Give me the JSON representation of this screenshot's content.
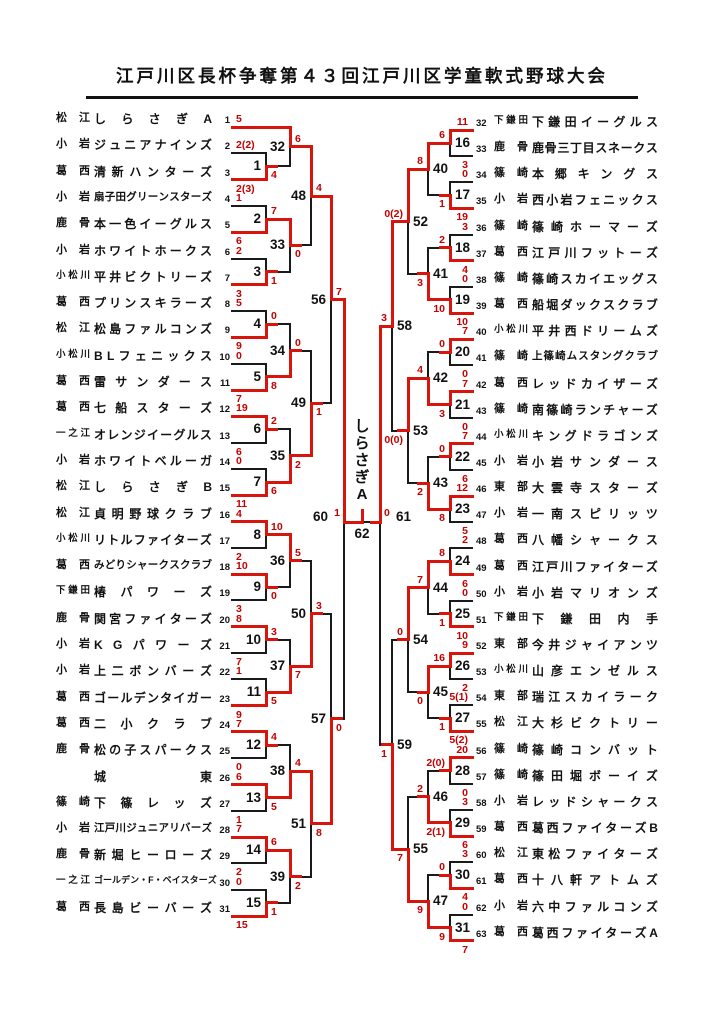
{
  "title": "江戸川区長杯争奪第４３回江戸川区学童軟式野球大会",
  "champion": "しらさぎA",
  "colors": {
    "winner_line": "#d8150d",
    "loser_line": "#1a1a1a",
    "score_text": "#c40000"
  },
  "teams": [
    {
      "no": 1,
      "district": "松江",
      "name": "しらさぎA"
    },
    {
      "no": 2,
      "district": "小岩",
      "name": "ジュニアナインズ"
    },
    {
      "no": 3,
      "district": "葛西",
      "name": "清新ハンターズ"
    },
    {
      "no": 4,
      "district": "小岩",
      "name": "扇子田グリーンスターズ"
    },
    {
      "no": 5,
      "district": "鹿骨",
      "name": "本一色イーグルス"
    },
    {
      "no": 6,
      "district": "小岩",
      "name": "ホワイトホークス"
    },
    {
      "no": 7,
      "district": "小松川",
      "name": "平井ビクトリーズ"
    },
    {
      "no": 8,
      "district": "葛西",
      "name": "プリンスキラーズ"
    },
    {
      "no": 9,
      "district": "松江",
      "name": "松島ファルコンズ"
    },
    {
      "no": 10,
      "district": "小松川",
      "name": "BLフェニックス"
    },
    {
      "no": 11,
      "district": "葛西",
      "name": "雷サンダース"
    },
    {
      "no": 12,
      "district": "葛西",
      "name": "七船スターズ"
    },
    {
      "no": 13,
      "district": "一之江",
      "name": "オレンジイーグルス"
    },
    {
      "no": 14,
      "district": "小岩",
      "name": "ホワイトベルーガ"
    },
    {
      "no": 15,
      "district": "松江",
      "name": "しらさぎB"
    },
    {
      "no": 16,
      "district": "松江",
      "name": "貞明野球クラブ"
    },
    {
      "no": 17,
      "district": "小松川",
      "name": "リトルファイターズ"
    },
    {
      "no": 18,
      "district": "葛西",
      "name": "みどりシャークスクラブ"
    },
    {
      "no": 19,
      "district": "下鎌田",
      "name": "椿パワーズ"
    },
    {
      "no": 20,
      "district": "鹿骨",
      "name": "関宮ファイターズ"
    },
    {
      "no": 21,
      "district": "小岩",
      "name": "KGパワーズ"
    },
    {
      "no": 22,
      "district": "小岩",
      "name": "上二ボンバーズ"
    },
    {
      "no": 23,
      "district": "葛西",
      "name": "ゴールデンタイガー"
    },
    {
      "no": 24,
      "district": "葛西",
      "name": "二小クラブ"
    },
    {
      "no": 25,
      "district": "鹿骨",
      "name": "松の子スパークス"
    },
    {
      "no": 26,
      "district": "",
      "name": "城東"
    },
    {
      "no": 27,
      "district": "篠崎",
      "name": "下篠レッズ"
    },
    {
      "no": 28,
      "district": "小岩",
      "name": "江戸川ジュニアリバーズ"
    },
    {
      "no": 29,
      "district": "鹿骨",
      "name": "新堀ヒーローズ"
    },
    {
      "no": 30,
      "district": "一之江",
      "name": "ゴールデン・F・ベイスターズ"
    },
    {
      "no": 31,
      "district": "葛西",
      "name": "長島ビーバーズ"
    },
    {
      "no": 32,
      "district": "下鎌田",
      "name": "下鎌田イーグルス"
    },
    {
      "no": 33,
      "district": "鹿骨",
      "name": "鹿骨三丁目スネークス"
    },
    {
      "no": 34,
      "district": "篠崎",
      "name": "本郷キングス"
    },
    {
      "no": 35,
      "district": "小岩",
      "name": "西小岩フェニックス"
    },
    {
      "no": 36,
      "district": "篠崎",
      "name": "篠崎ホーマーズ"
    },
    {
      "no": 37,
      "district": "葛西",
      "name": "江戸川フットーズ"
    },
    {
      "no": 38,
      "district": "篠崎",
      "name": "篠崎スカイエッグス"
    },
    {
      "no": 39,
      "district": "葛西",
      "name": "船堀ダックスクラブ"
    },
    {
      "no": 40,
      "district": "小松川",
      "name": "平井西ドリームズ"
    },
    {
      "no": 41,
      "district": "篠崎",
      "name": "上篠崎ムスタングクラブ"
    },
    {
      "no": 42,
      "district": "葛西",
      "name": "レッドカイザーズ"
    },
    {
      "no": 43,
      "district": "篠崎",
      "name": "南篠崎ランチャーズ"
    },
    {
      "no": 44,
      "district": "小松川",
      "name": "キングドラゴンズ"
    },
    {
      "no": 45,
      "district": "小岩",
      "name": "小岩サンダース"
    },
    {
      "no": 46,
      "district": "東部",
      "name": "大雲寺スターズ"
    },
    {
      "no": 47,
      "district": "小岩",
      "name": "一南スピリッツ"
    },
    {
      "no": 48,
      "district": "葛西",
      "name": "八幡シャークス"
    },
    {
      "no": 49,
      "district": "葛西",
      "name": "江戸川ファイターズ"
    },
    {
      "no": 50,
      "district": "小岩",
      "name": "小岩マリオンズ"
    },
    {
      "no": 51,
      "district": "下鎌田",
      "name": "下鎌田内手"
    },
    {
      "no": 52,
      "district": "東部",
      "name": "今井ジャイアンツ"
    },
    {
      "no": 53,
      "district": "小松川",
      "name": "山彦エンゼルス"
    },
    {
      "no": 54,
      "district": "東部",
      "name": "瑞江スカイラーク"
    },
    {
      "no": 55,
      "district": "松江",
      "name": "大杉ビクトリー"
    },
    {
      "no": 56,
      "district": "篠崎",
      "name": "篠崎コンバット"
    },
    {
      "no": 57,
      "district": "篠崎",
      "name": "篠田堀ボーイズ"
    },
    {
      "no": 58,
      "district": "小岩",
      "name": "レッドシャークス"
    },
    {
      "no": 59,
      "district": "葛西",
      "name": "葛西ファイターズB"
    },
    {
      "no": 60,
      "district": "松江",
      "name": "東松ファイターズ"
    },
    {
      "no": 61,
      "district": "葛西",
      "name": "十八軒アトムズ"
    },
    {
      "no": 62,
      "district": "小岩",
      "name": "六中ファルコンズ"
    },
    {
      "no": 63,
      "district": "葛西",
      "name": "葛西ファイターズA"
    }
  ],
  "matches": [
    {
      "no": 1,
      "side": "left",
      "round": 1,
      "top": {
        "team": 2
      },
      "bottom": {
        "team": 3
      },
      "ts": "2(2)",
      "bs": "2(3)",
      "w": "b"
    },
    {
      "no": 2,
      "side": "left",
      "round": 1,
      "top": {
        "team": 4
      },
      "bottom": {
        "team": 5
      },
      "ts": "1",
      "bs": "6",
      "w": "b"
    },
    {
      "no": 3,
      "side": "left",
      "round": 1,
      "top": {
        "team": 6
      },
      "bottom": {
        "team": 7
      },
      "ts": "2",
      "bs": "3",
      "w": "b"
    },
    {
      "no": 4,
      "side": "left",
      "round": 1,
      "top": {
        "team": 8
      },
      "bottom": {
        "team": 9
      },
      "ts": "5",
      "bs": "9",
      "w": "b"
    },
    {
      "no": 5,
      "side": "left",
      "round": 1,
      "top": {
        "team": 10
      },
      "bottom": {
        "team": 11
      },
      "ts": "0",
      "bs": "7",
      "w": "b"
    },
    {
      "no": 6,
      "side": "left",
      "round": 1,
      "top": {
        "team": 12
      },
      "bottom": {
        "team": 13
      },
      "ts": "19",
      "bs": "6",
      "w": "t"
    },
    {
      "no": 7,
      "side": "left",
      "round": 1,
      "top": {
        "team": 14
      },
      "bottom": {
        "team": 15
      },
      "ts": "0",
      "bs": "11",
      "w": "b"
    },
    {
      "no": 8,
      "side": "left",
      "round": 1,
      "top": {
        "team": 16
      },
      "bottom": {
        "team": 17
      },
      "ts": "4",
      "bs": "2",
      "w": "t"
    },
    {
      "no": 9,
      "side": "left",
      "round": 1,
      "top": {
        "team": 18
      },
      "bottom": {
        "team": 19
      },
      "ts": "10",
      "bs": "3",
      "w": "t"
    },
    {
      "no": 10,
      "side": "left",
      "round": 1,
      "top": {
        "team": 20
      },
      "bottom": {
        "team": 21
      },
      "ts": "8",
      "bs": "7",
      "w": "t"
    },
    {
      "no": 11,
      "side": "left",
      "round": 1,
      "top": {
        "team": 22
      },
      "bottom": {
        "team": 23
      },
      "ts": "1",
      "bs": "9",
      "w": "b"
    },
    {
      "no": 12,
      "side": "left",
      "round": 1,
      "top": {
        "team": 24
      },
      "bottom": {
        "team": 25
      },
      "ts": "7",
      "bs": "0",
      "w": "t"
    },
    {
      "no": 13,
      "side": "left",
      "round": 1,
      "top": {
        "team": 26
      },
      "bottom": {
        "team": 27
      },
      "ts": "6",
      "bs": "1",
      "w": "t"
    },
    {
      "no": 14,
      "side": "left",
      "round": 1,
      "top": {
        "team": 28
      },
      "bottom": {
        "team": 29
      },
      "ts": "7",
      "bs": "2",
      "w": "t"
    },
    {
      "no": 15,
      "side": "left",
      "round": 1,
      "top": {
        "team": 30
      },
      "bottom": {
        "team": 31
      },
      "ts": "0",
      "bs": "15",
      "w": "b"
    },
    {
      "no": 16,
      "side": "right",
      "round": 1,
      "top": {
        "team": 32
      },
      "bottom": {
        "team": 33
      },
      "ts": "11",
      "bs": "3",
      "w": "t"
    },
    {
      "no": 17,
      "side": "right",
      "round": 1,
      "top": {
        "team": 34
      },
      "bottom": {
        "team": 35
      },
      "ts": "0",
      "bs": "19",
      "w": "b"
    },
    {
      "no": 18,
      "side": "right",
      "round": 1,
      "top": {
        "team": 36
      },
      "bottom": {
        "team": 37
      },
      "ts": "3",
      "bs": "4",
      "w": "b"
    },
    {
      "no": 19,
      "side": "right",
      "round": 1,
      "top": {
        "team": 38
      },
      "bottom": {
        "team": 39
      },
      "ts": "0",
      "bs": "10",
      "w": "b"
    },
    {
      "no": 20,
      "side": "right",
      "round": 1,
      "top": {
        "team": 40
      },
      "bottom": {
        "team": 41
      },
      "ts": "7",
      "bs": "0",
      "w": "t"
    },
    {
      "no": 21,
      "side": "right",
      "round": 1,
      "top": {
        "team": 42
      },
      "bottom": {
        "team": 43
      },
      "ts": "7",
      "bs": "0",
      "w": "t"
    },
    {
      "no": 22,
      "side": "right",
      "round": 1,
      "top": {
        "team": 44
      },
      "bottom": {
        "team": 45
      },
      "ts": "7",
      "bs": "6",
      "w": "t"
    },
    {
      "no": 23,
      "side": "right",
      "round": 1,
      "top": {
        "team": 46
      },
      "bottom": {
        "team": 47
      },
      "ts": "12",
      "bs": "5",
      "w": "t"
    },
    {
      "no": 24,
      "side": "right",
      "round": 1,
      "top": {
        "team": 48
      },
      "bottom": {
        "team": 49
      },
      "ts": "2",
      "bs": "6",
      "w": "b"
    },
    {
      "no": 25,
      "side": "right",
      "round": 1,
      "top": {
        "team": 50
      },
      "bottom": {
        "team": 51
      },
      "ts": "0",
      "bs": "10",
      "w": "b"
    },
    {
      "no": 26,
      "side": "right",
      "round": 1,
      "top": {
        "team": 52
      },
      "bottom": {
        "team": 53
      },
      "ts": "9",
      "bs": "2",
      "w": "t"
    },
    {
      "no": 27,
      "side": "right",
      "round": 1,
      "top": {
        "team": 54
      },
      "bottom": {
        "team": 55
      },
      "ts": "5(1)",
      "bs": "5(2)",
      "w": "b"
    },
    {
      "no": 28,
      "side": "right",
      "round": 1,
      "top": {
        "team": 56
      },
      "bottom": {
        "team": 57
      },
      "ts": "20",
      "bs": "0",
      "w": "t"
    },
    {
      "no": 29,
      "side": "right",
      "round": 1,
      "top": {
        "team": 58
      },
      "bottom": {
        "team": 59
      },
      "ts": "3",
      "bs": "6",
      "w": "b"
    },
    {
      "no": 30,
      "side": "right",
      "round": 1,
      "top": {
        "team": 60
      },
      "bottom": {
        "team": 61
      },
      "ts": "3",
      "bs": "4",
      "w": "b"
    },
    {
      "no": 31,
      "side": "right",
      "round": 1,
      "top": {
        "team": 62
      },
      "bottom": {
        "team": 63
      },
      "ts": "0",
      "bs": "7",
      "w": "b"
    },
    {
      "no": 32,
      "side": "left",
      "round": 2,
      "top": {
        "team": 1
      },
      "bottom": {
        "match": 1
      },
      "ts": "5",
      "bs": "4",
      "w": "t"
    },
    {
      "no": 33,
      "side": "left",
      "round": 2,
      "top": {
        "match": 2
      },
      "bottom": {
        "match": 3
      },
      "ts": "7",
      "bs": "1",
      "w": "t"
    },
    {
      "no": 34,
      "side": "left",
      "round": 2,
      "top": {
        "match": 4
      },
      "bottom": {
        "match": 5
      },
      "ts": "0",
      "bs": "8",
      "w": "b"
    },
    {
      "no": 35,
      "side": "left",
      "round": 2,
      "top": {
        "match": 6
      },
      "bottom": {
        "match": 7
      },
      "ts": "2",
      "bs": "6",
      "w": "b"
    },
    {
      "no": 36,
      "side": "left",
      "round": 2,
      "top": {
        "match": 8
      },
      "bottom": {
        "match": 9
      },
      "ts": "10",
      "bs": "0",
      "w": "t"
    },
    {
      "no": 37,
      "side": "left",
      "round": 2,
      "top": {
        "match": 10
      },
      "bottom": {
        "match": 11
      },
      "ts": "3",
      "bs": "5",
      "w": "b"
    },
    {
      "no": 38,
      "side": "left",
      "round": 2,
      "top": {
        "match": 12
      },
      "bottom": {
        "match": 13
      },
      "ts": "4",
      "bs": "5",
      "w": "b"
    },
    {
      "no": 39,
      "side": "left",
      "round": 2,
      "top": {
        "match": 14
      },
      "bottom": {
        "match": 15
      },
      "ts": "6",
      "bs": "1",
      "w": "t"
    },
    {
      "no": 40,
      "side": "right",
      "round": 2,
      "top": {
        "match": 16
      },
      "bottom": {
        "match": 17
      },
      "ts": "6",
      "bs": "1",
      "w": "t"
    },
    {
      "no": 41,
      "side": "right",
      "round": 2,
      "top": {
        "match": 18
      },
      "bottom": {
        "match": 19
      },
      "ts": "2",
      "bs": "10",
      "w": "b"
    },
    {
      "no": 42,
      "side": "right",
      "round": 2,
      "top": {
        "match": 20
      },
      "bottom": {
        "match": 21
      },
      "ts": "0",
      "bs": "3",
      "w": "b"
    },
    {
      "no": 43,
      "side": "right",
      "round": 2,
      "top": {
        "match": 22
      },
      "bottom": {
        "match": 23
      },
      "ts": "0",
      "bs": "8",
      "w": "b"
    },
    {
      "no": 44,
      "side": "right",
      "round": 2,
      "top": {
        "match": 24
      },
      "bottom": {
        "match": 25
      },
      "ts": "8",
      "bs": "1",
      "w": "t"
    },
    {
      "no": 45,
      "side": "right",
      "round": 2,
      "top": {
        "match": 26
      },
      "bottom": {
        "match": 27
      },
      "ts": "16",
      "bs": "1",
      "w": "t"
    },
    {
      "no": 46,
      "side": "right",
      "round": 2,
      "top": {
        "match": 28
      },
      "bottom": {
        "match": 29
      },
      "ts": "2(0)",
      "bs": "2(1)",
      "w": "b"
    },
    {
      "no": 47,
      "side": "right",
      "round": 2,
      "top": {
        "match": 30
      },
      "bottom": {
        "match": 31
      },
      "ts": "0",
      "bs": "9",
      "w": "b"
    },
    {
      "no": 48,
      "side": "left",
      "round": 3,
      "top": {
        "match": 32
      },
      "bottom": {
        "match": 33
      },
      "ts": "6",
      "bs": "0",
      "w": "t"
    },
    {
      "no": 49,
      "side": "left",
      "round": 3,
      "top": {
        "match": 34
      },
      "bottom": {
        "match": 35
      },
      "ts": "0",
      "bs": "2",
      "w": "b"
    },
    {
      "no": 50,
      "side": "left",
      "round": 3,
      "top": {
        "match": 36
      },
      "bottom": {
        "match": 37
      },
      "ts": "5",
      "bs": "7",
      "w": "b"
    },
    {
      "no": 51,
      "side": "left",
      "round": 3,
      "top": {
        "match": 38
      },
      "bottom": {
        "match": 39
      },
      "ts": "4",
      "bs": "2",
      "w": "t"
    },
    {
      "no": 52,
      "side": "right",
      "round": 3,
      "top": {
        "match": 40
      },
      "bottom": {
        "match": 41
      },
      "ts": "8",
      "bs": "3",
      "w": "t"
    },
    {
      "no": 53,
      "side": "right",
      "round": 3,
      "top": {
        "match": 42
      },
      "bottom": {
        "match": 43
      },
      "ts": "4",
      "bs": "2",
      "w": "t"
    },
    {
      "no": 54,
      "side": "right",
      "round": 3,
      "top": {
        "match": 44
      },
      "bottom": {
        "match": 45
      },
      "ts": "7",
      "bs": "0",
      "w": "t"
    },
    {
      "no": 55,
      "side": "right",
      "round": 3,
      "top": {
        "match": 46
      },
      "bottom": {
        "match": 47
      },
      "ts": "2",
      "bs": "9",
      "w": "b"
    },
    {
      "no": 56,
      "side": "left",
      "round": 4,
      "top": {
        "match": 48
      },
      "bottom": {
        "match": 49
      },
      "ts": "4",
      "bs": "1",
      "w": "t"
    },
    {
      "no": 57,
      "side": "left",
      "round": 4,
      "top": {
        "match": 50
      },
      "bottom": {
        "match": 51
      },
      "ts": "3",
      "bs": "8",
      "w": "b"
    },
    {
      "no": 58,
      "side": "right",
      "round": 4,
      "top": {
        "match": 52
      },
      "bottom": {
        "match": 53
      },
      "ts": "0(2)",
      "bs": "0(0)",
      "w": "t"
    },
    {
      "no": 59,
      "side": "right",
      "round": 4,
      "top": {
        "match": 54
      },
      "bottom": {
        "match": 55
      },
      "ts": "0",
      "bs": "7",
      "w": "b"
    },
    {
      "no": 60,
      "side": "left",
      "round": 5,
      "top": {
        "match": 56
      },
      "bottom": {
        "match": 57
      },
      "ts": "7",
      "bs": "0",
      "w": "t"
    },
    {
      "no": 61,
      "side": "right",
      "round": 5,
      "top": {
        "match": 58
      },
      "bottom": {
        "match": 59
      },
      "ts": "3",
      "bs": "1",
      "w": "t"
    },
    {
      "no": 62,
      "side": "center",
      "round": 6,
      "top": {
        "match": 60
      },
      "bottom": {
        "match": 61
      },
      "ts": "1",
      "bs": "0",
      "w": "t"
    }
  ]
}
